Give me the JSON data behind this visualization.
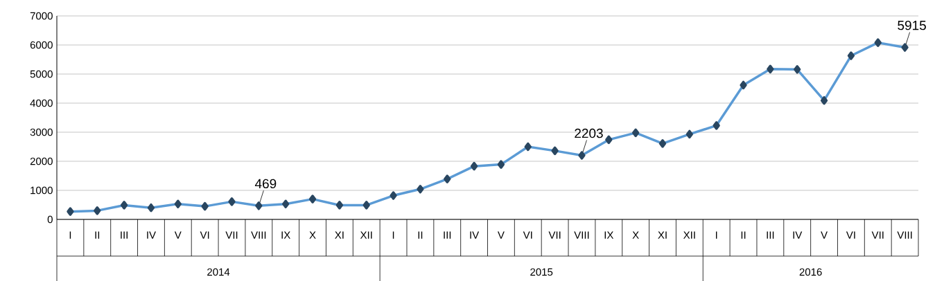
{
  "chart_data": {
    "type": "line",
    "categories": [
      "I",
      "II",
      "III",
      "IV",
      "V",
      "VI",
      "VII",
      "VIII",
      "IX",
      "X",
      "XI",
      "XII",
      "I",
      "II",
      "III",
      "IV",
      "V",
      "VI",
      "VII",
      "VIII",
      "IX",
      "X",
      "XI",
      "XII",
      "I",
      "II",
      "III",
      "IV",
      "V",
      "VI",
      "VII",
      "VIII"
    ],
    "series": [
      {
        "color": "#5b9bd5",
        "values": [
          270,
          300,
          490,
          400,
          530,
          450,
          610,
          469,
          530,
          700,
          490,
          490,
          820,
          1040,
          1390,
          1830,
          1890,
          2500,
          2360,
          2203,
          2740,
          2980,
          2610,
          2930,
          3230,
          4620,
          5170,
          5160,
          4090,
          5630,
          6080,
          5915
        ],
        "value_labels": [
          null,
          null,
          null,
          null,
          null,
          null,
          null,
          "469",
          null,
          null,
          null,
          null,
          null,
          null,
          null,
          null,
          null,
          null,
          null,
          "2203",
          null,
          null,
          null,
          null,
          null,
          null,
          null,
          null,
          null,
          null,
          null,
          "5915"
        ]
      }
    ],
    "annotations": [
      "2014",
      "2015",
      "2016"
    ],
    "ylim": [
      0,
      7000
    ],
    "yticks": [
      0,
      1000,
      2000,
      3000,
      4000,
      5000,
      6000,
      7000
    ],
    "grid": "y",
    "marker": "diamond",
    "line_style": "solid"
  }
}
